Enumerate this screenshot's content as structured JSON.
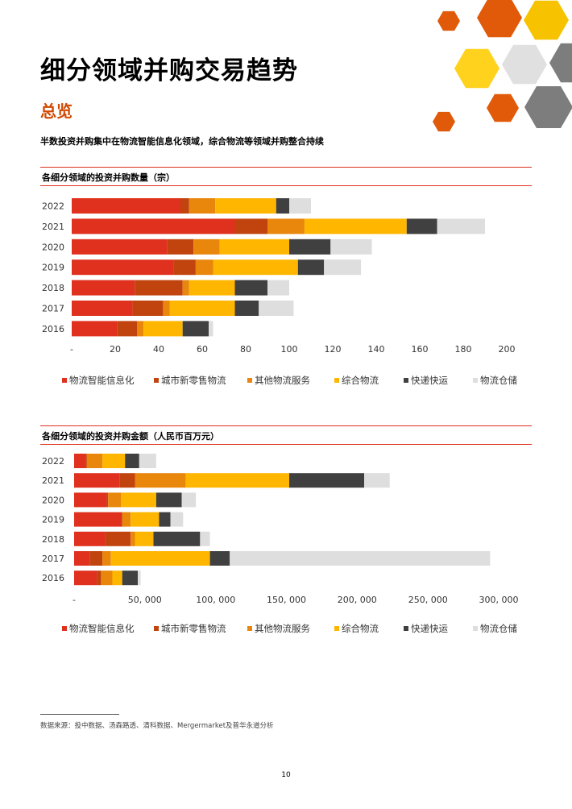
{
  "page": {
    "title": "细分领域并购交易趋势",
    "subtitle": "总览",
    "lead": "半数投资并购集中在物流智能信息化领域，综合物流等领域并购整合持续",
    "footnote": "数据来源：投中数据、汤森路透、清科数据、Mergermarket及普华永道分析",
    "page_number": "10"
  },
  "decor_colors": [
    "#e05a0a",
    "#f5b400",
    "#f7c300",
    "#ffd21e",
    "#e0e0e0",
    "#7d7d7d"
  ],
  "chart_data": [
    {
      "type": "bar",
      "orientation": "horizontal",
      "stacked": true,
      "title": "各细分领域的投资并购数量（宗）",
      "categories": [
        "2022",
        "2021",
        "2020",
        "2019",
        "2018",
        "2017",
        "2016"
      ],
      "xlim": [
        0,
        200
      ],
      "xticks": [
        "-",
        "20",
        "40",
        "60",
        "80",
        "100",
        "120",
        "140",
        "160",
        "180",
        "200"
      ],
      "series": [
        {
          "name": "物流智能信息化",
          "color": "#e0301e",
          "values": [
            50,
            75,
            44,
            47,
            29,
            28,
            21
          ]
        },
        {
          "name": "城市新零售物流",
          "color": "#c1440e",
          "values": [
            4,
            15,
            12,
            10,
            22,
            14,
            9
          ]
        },
        {
          "name": "其他物流服务",
          "color": "#e8870b",
          "values": [
            12,
            17,
            12,
            8,
            3,
            3,
            3
          ]
        },
        {
          "name": "综合物流",
          "color": "#ffb600",
          "values": [
            28,
            47,
            32,
            39,
            21,
            30,
            18
          ]
        },
        {
          "name": "快递快运",
          "color": "#404040",
          "values": [
            6,
            14,
            19,
            12,
            15,
            11,
            12
          ]
        },
        {
          "name": "物流仓储",
          "color": "#dedede",
          "values": [
            10,
            22,
            19,
            17,
            10,
            16,
            2
          ]
        }
      ],
      "legend_position": "bottom",
      "grid": false
    },
    {
      "type": "bar",
      "orientation": "horizontal",
      "stacked": true,
      "title": "各细分领域的投资并购金额（人民币百万元）",
      "categories": [
        "2022",
        "2021",
        "2020",
        "2019",
        "2018",
        "2017",
        "2016"
      ],
      "xlim": [
        0,
        300000
      ],
      "xticks": [
        "-",
        "50, 000",
        "100, 000",
        "150, 000",
        "200, 000",
        "250, 000",
        "300, 000"
      ],
      "series": [
        {
          "name": "物流智能信息化",
          "color": "#e0301e",
          "values": [
            8000,
            32000,
            23000,
            33000,
            22000,
            11000,
            16000
          ]
        },
        {
          "name": "城市新零售物流",
          "color": "#c1440e",
          "values": [
            1000,
            11000,
            1000,
            1000,
            18000,
            9000,
            3000
          ]
        },
        {
          "name": "其他物流服务",
          "color": "#e8870b",
          "values": [
            11000,
            36000,
            9000,
            6000,
            3000,
            6000,
            8000
          ]
        },
        {
          "name": "综合物流",
          "color": "#ffb600",
          "values": [
            16000,
            73000,
            25000,
            20000,
            13000,
            70000,
            7000
          ]
        },
        {
          "name": "快递快运",
          "color": "#404040",
          "values": [
            10000,
            53000,
            18000,
            8000,
            33000,
            14000,
            11000
          ]
        },
        {
          "name": "物流仓储",
          "color": "#dedede",
          "values": [
            12000,
            18000,
            10000,
            9000,
            7000,
            184000,
            2000
          ]
        }
      ],
      "legend_position": "bottom",
      "grid": false
    }
  ]
}
